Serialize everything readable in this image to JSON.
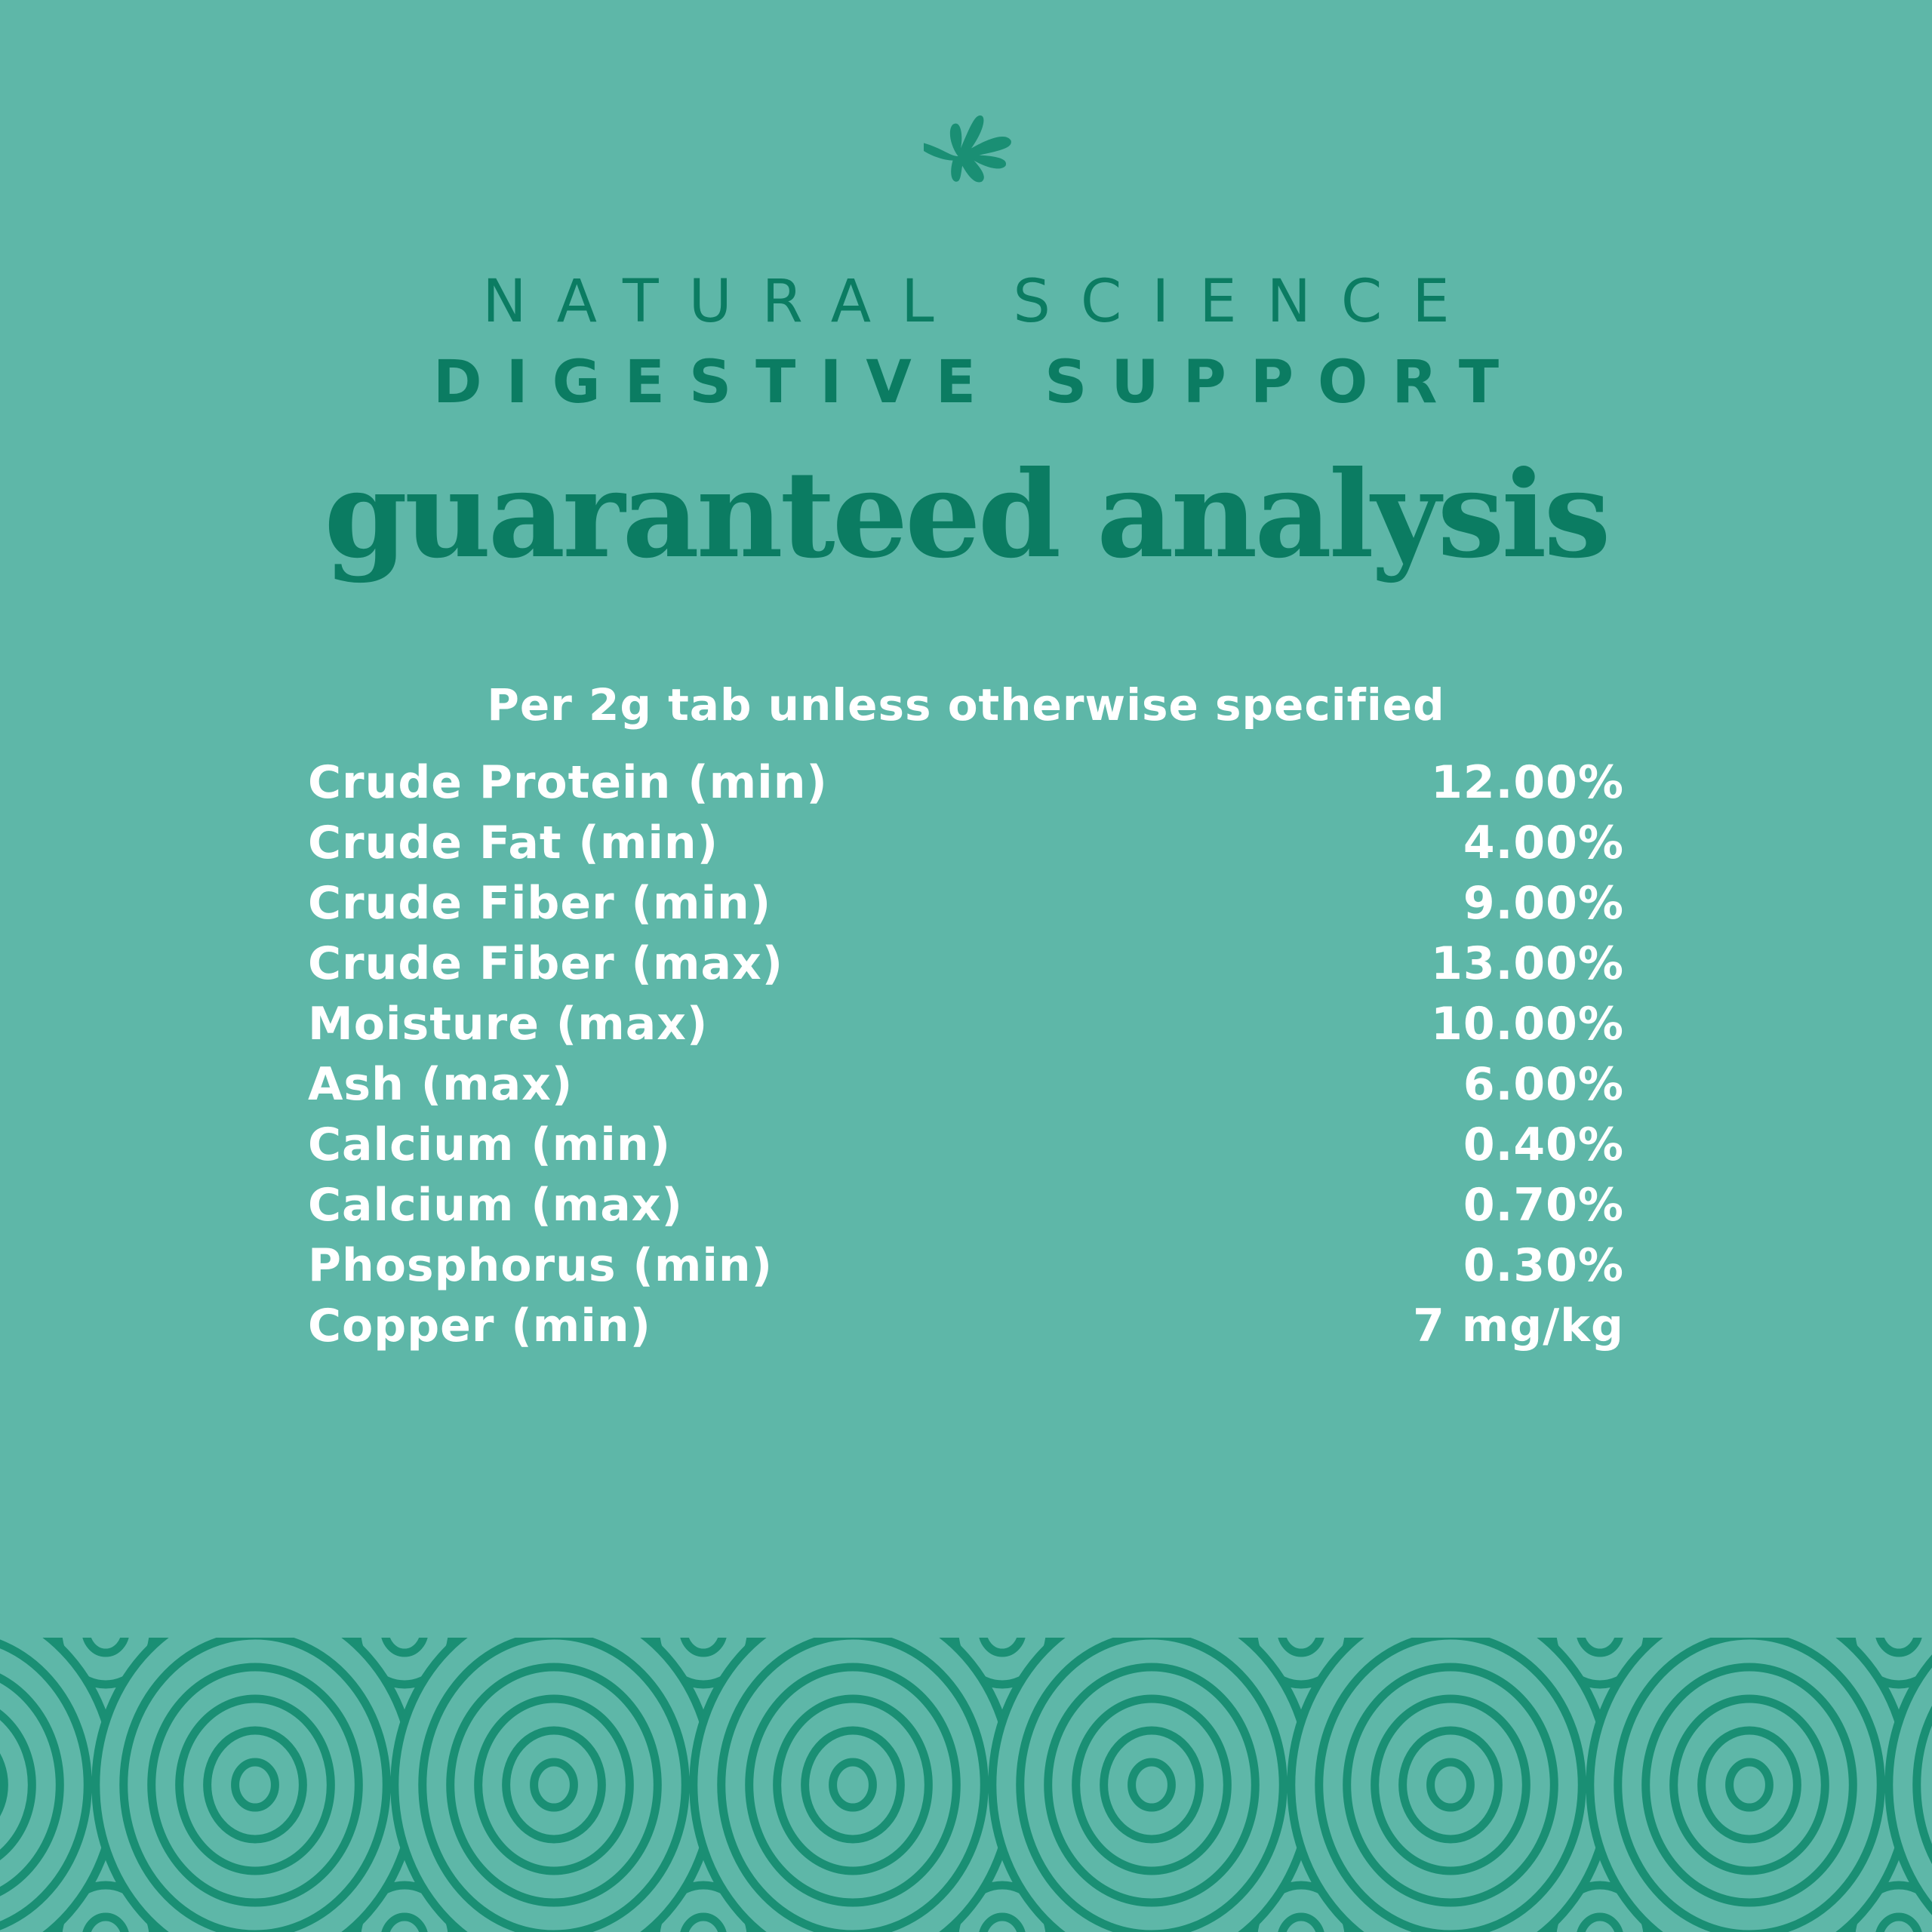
{
  "colors": {
    "background": "#5eb7a8",
    "accent": "#0b7c62",
    "pattern": "#1a8f74",
    "text": "#ffffff"
  },
  "logo": {
    "icon": "leaf-icon"
  },
  "header": {
    "brand": "NATURAL SCIENCE",
    "product": "DIGESTIVE SUPPORT",
    "title": "guaranteed analysis"
  },
  "analysis": {
    "subtitle": "Per 2g tab unless otherwise specified",
    "rows": [
      {
        "label": "Crude Protein (min)",
        "value": "12.00%"
      },
      {
        "label": "Crude Fat (min)",
        "value": "4.00%"
      },
      {
        "label": "Crude Fiber (min)",
        "value": "9.00%"
      },
      {
        "label": "Crude Fiber (max)",
        "value": "13.00%"
      },
      {
        "label": "Moisture (max)",
        "value": "10.00%"
      },
      {
        "label": "Ash (max)",
        "value": "6.00%"
      },
      {
        "label": "Calcium (min)",
        "value": "0.40%"
      },
      {
        "label": "Calcium (max)",
        "value": "0.70%"
      },
      {
        "label": "Phosphorus (min)",
        "value": "0.30%"
      },
      {
        "label": "Copper (min)",
        "value": "7 mg/kg"
      }
    ]
  }
}
